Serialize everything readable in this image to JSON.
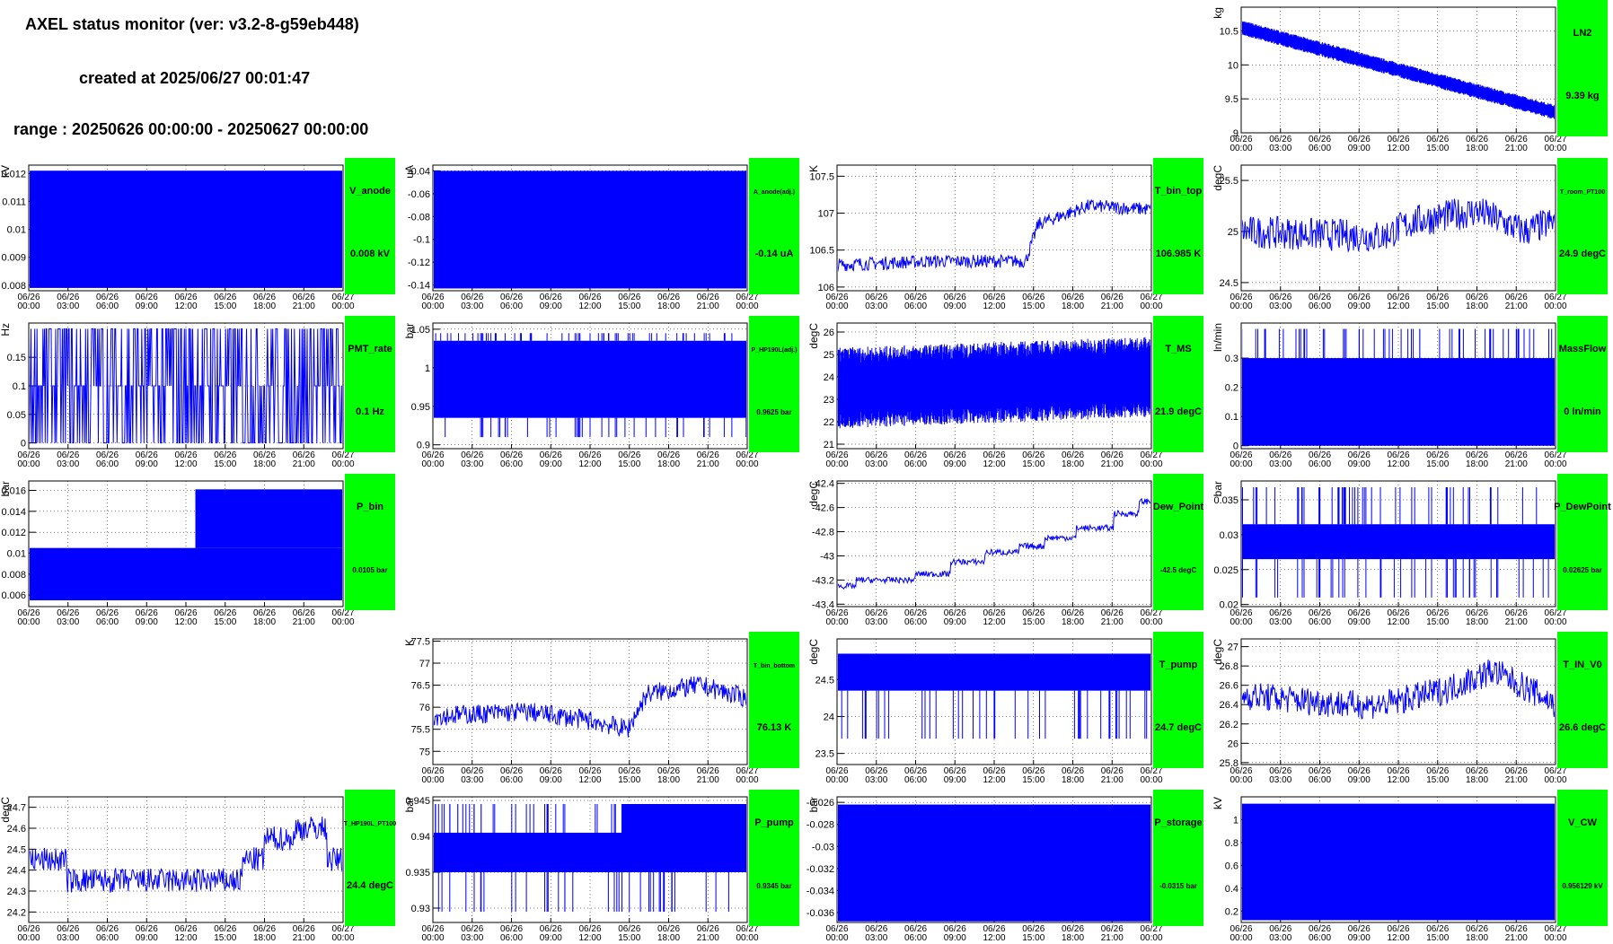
{
  "header": {
    "title": "AXEL status monitor (ver: v3.2-8-g59eb448)",
    "created": "created at 2025/06/27 00:01:47",
    "range": "range : 20250626 00:00:00 - 20250627 00:00:00"
  },
  "colors": {
    "trace": "#0000ff",
    "badge": "#00ff00",
    "axis": "#000000",
    "grid": "#000000",
    "background": "#ffffff"
  },
  "x_ticks": [
    [
      "06/26",
      "00:00"
    ],
    [
      "06/26",
      "03:00"
    ],
    [
      "06/26",
      "06:00"
    ],
    [
      "06/26",
      "09:00"
    ],
    [
      "06/26",
      "12:00"
    ],
    [
      "06/26",
      "15:00"
    ],
    [
      "06/26",
      "18:00"
    ],
    [
      "06/26",
      "21:00"
    ],
    [
      "06/27",
      "00:00"
    ]
  ],
  "chart_data": [
    {
      "id": "LN2",
      "type": "line",
      "grid_pos": "row0-col3",
      "series_name": "LN2",
      "current": "9.39 kg",
      "ylabel": "kg",
      "yticks": [
        "9",
        "9.5",
        "10",
        "10.5"
      ],
      "ylim": [
        9,
        10.85
      ],
      "trend": {
        "start": 10.55,
        "end": 9.3,
        "band": 0.22
      },
      "style": "band"
    },
    {
      "id": "V_anode",
      "type": "area",
      "grid_pos": "row1-col0",
      "series_name": "V_anode",
      "current": "0.008 kV",
      "ylabel": "kV",
      "yticks": [
        "0.008",
        "0.009",
        "0.01",
        "0.011",
        "0.012"
      ],
      "ylim": [
        0.0078,
        0.0123
      ],
      "fill": {
        "from": 0.0079,
        "to": 0.0121
      }
    },
    {
      "id": "A_anode",
      "type": "area",
      "grid_pos": "row1-col1",
      "series_name": "A_anode(adj.)",
      "current": "-0.14 uA",
      "ylabel": "uA",
      "yticks": [
        "-0.14",
        "-0.12",
        "-0.1",
        "-0.08",
        "-0.06",
        "-0.04"
      ],
      "ylim": [
        -0.145,
        -0.035
      ],
      "fill": {
        "from": -0.143,
        "to": -0.04
      }
    },
    {
      "id": "T_bin_top",
      "type": "line",
      "grid_pos": "row1-col2",
      "series_name": "T_bin_top",
      "current": "106.985 K",
      "ylabel": "K",
      "yticks": [
        "106",
        "106.5",
        "107",
        "107.5"
      ],
      "ylim": [
        105.95,
        107.65
      ],
      "knots": [
        [
          0,
          106.3
        ],
        [
          0.3,
          106.35
        ],
        [
          0.6,
          106.35
        ],
        [
          0.64,
          106.85
        ],
        [
          0.8,
          107.1
        ],
        [
          1,
          107.05
        ]
      ],
      "noise": 0.18
    },
    {
      "id": "T_room_PT100",
      "type": "line",
      "grid_pos": "row1-col3",
      "series_name": "T_room_PT100",
      "current": "24.9 degC",
      "ylabel": "degC",
      "yticks": [
        "24.5",
        "25",
        "25.5"
      ],
      "ylim": [
        24.42,
        25.65
      ],
      "knots": [
        [
          0,
          25.0
        ],
        [
          0.45,
          24.95
        ],
        [
          0.55,
          25.1
        ],
        [
          0.75,
          25.2
        ],
        [
          0.9,
          25.0
        ],
        [
          1,
          25.1
        ]
      ],
      "noise": 0.32
    },
    {
      "id": "PMT_rate",
      "type": "line",
      "grid_pos": "row2-col0",
      "series_name": "PMT_rate",
      "current": "0.1 Hz",
      "ylabel": "Hz",
      "yticks": [
        "0",
        "0.05",
        "0.1",
        "0.15"
      ],
      "ylim": [
        -0.01,
        0.21
      ],
      "levels": [
        0,
        0.1,
        0.2
      ],
      "style": "spikes"
    },
    {
      "id": "P_HP190L",
      "type": "area",
      "grid_pos": "row2-col1",
      "series_name": "P_HP190L(adj.)",
      "current": "0.9625 bar",
      "ylabel": "bar",
      "yticks": [
        "0.9",
        "0.95",
        "1",
        "1.05"
      ],
      "ylim": [
        0.895,
        1.058
      ],
      "fill": {
        "from": 0.935,
        "to": 1.035
      },
      "spikes_up": 1.045,
      "spikes_down": 0.91
    },
    {
      "id": "T_MS",
      "type": "line",
      "grid_pos": "row2-col2",
      "series_name": "T_MS",
      "current": "21.9 degC",
      "ylabel": "degC",
      "yticks": [
        "21",
        "22",
        "23",
        "24",
        "25",
        "26"
      ],
      "ylim": [
        20.8,
        26.4
      ],
      "trend": {
        "start": 23.5,
        "end": 24.0,
        "band": 3.6
      },
      "style": "band"
    },
    {
      "id": "MassFlow",
      "type": "line",
      "grid_pos": "row2-col3",
      "series_name": "MassFlow",
      "current": "0 ln/min",
      "ylabel": "ln/min",
      "yticks": [
        "0",
        "0.1",
        "0.2",
        "0.3"
      ],
      "ylim": [
        -0.01,
        0.42
      ],
      "fill": {
        "from": 0,
        "to": 0.3
      },
      "spikes_up": 0.4
    },
    {
      "id": "P_bin",
      "type": "line",
      "grid_pos": "row3-col0",
      "series_name": "P_bin",
      "current": "0.0105 bar",
      "ylabel": "bar",
      "yticks": [
        "0.006",
        "0.008",
        "0.01",
        "0.012",
        "0.014",
        "0.016"
      ],
      "ylim": [
        0.0049,
        0.0169
      ],
      "fill": {
        "from": 0.0055,
        "to": 0.0105
      },
      "fill2": {
        "from": 0.0105,
        "to": 0.0161,
        "x0": 0.53
      }
    },
    {
      "id": "Dew_Point",
      "type": "line",
      "grid_pos": "row3-col2",
      "series_name": "Dew_Point",
      "current": "-42.5 degC",
      "ylabel": "degC",
      "yticks": [
        "-43.4",
        "-43.2",
        "-43",
        "-42.8",
        "-42.6",
        "-42.4"
      ],
      "ylim": [
        -43.42,
        -42.38
      ],
      "steps": [
        [
          0,
          -43.25
        ],
        [
          0.06,
          -43.2
        ],
        [
          0.25,
          -43.15
        ],
        [
          0.36,
          -43.05
        ],
        [
          0.47,
          -42.97
        ],
        [
          0.58,
          -42.92
        ],
        [
          0.66,
          -42.85
        ],
        [
          0.76,
          -42.77
        ],
        [
          0.88,
          -42.65
        ],
        [
          0.96,
          -42.55
        ],
        [
          1,
          -42.5
        ]
      ],
      "noise": 0.05
    },
    {
      "id": "P_DewPoint",
      "type": "area",
      "grid_pos": "row3-col3",
      "series_name": "P_DewPoint",
      "current": "0.02625 bar",
      "ylabel": "bar",
      "yticks": [
        "0.02",
        "0.025",
        "0.03",
        "0.035"
      ],
      "ylim": [
        0.0197,
        0.0377
      ],
      "fill": {
        "from": 0.0265,
        "to": 0.0315
      },
      "spikes_up": 0.0368,
      "spikes_down": 0.021
    },
    {
      "id": "T_bin_bottom",
      "type": "line",
      "grid_pos": "row4-col1",
      "series_name": "T_bin_bottom",
      "current": "76.13 K",
      "ylabel": "K",
      "yticks": [
        "75",
        "75.5",
        "76",
        "76.5",
        "77",
        "77.5"
      ],
      "ylim": [
        74.7,
        77.55
      ],
      "knots": [
        [
          0,
          75.8
        ],
        [
          0.3,
          75.9
        ],
        [
          0.5,
          75.7
        ],
        [
          0.62,
          75.5
        ],
        [
          0.68,
          76.3
        ],
        [
          0.85,
          76.5
        ],
        [
          1,
          76.2
        ]
      ],
      "noise": 0.45
    },
    {
      "id": "T_pump",
      "type": "area",
      "grid_pos": "row4-col2",
      "series_name": "T_pump",
      "current": "24.7 degC",
      "ylabel": "degC",
      "yticks": [
        "23.5",
        "24",
        "24.5"
      ],
      "ylim": [
        23.35,
        25.05
      ],
      "fill": {
        "from": 24.35,
        "to": 24.85
      },
      "spikes_down": 23.7
    },
    {
      "id": "T_IN_V0",
      "type": "line",
      "grid_pos": "row4-col3",
      "series_name": "T_IN_V0",
      "current": "26.6 degC",
      "ylabel": "degC",
      "yticks": [
        "25.8",
        "26",
        "26.2",
        "26.4",
        "26.6",
        "26.8",
        "27"
      ],
      "ylim": [
        25.78,
        27.08
      ],
      "knots": [
        [
          0,
          26.5
        ],
        [
          0.35,
          26.4
        ],
        [
          0.45,
          26.4
        ],
        [
          0.65,
          26.55
        ],
        [
          0.8,
          26.75
        ],
        [
          0.95,
          26.5
        ],
        [
          1,
          26.4
        ]
      ],
      "noise": 0.3
    },
    {
      "id": "T_HP190L_PT100",
      "type": "line",
      "grid_pos": "row5-col0",
      "series_name": "T_HP190L_PT100",
      "current": "24.4 degC",
      "ylabel": "degC",
      "yticks": [
        "24.2",
        "24.3",
        "24.4",
        "24.5",
        "24.6",
        "24.7"
      ],
      "ylim": [
        24.15,
        24.75
      ],
      "steps": [
        [
          0,
          24.45
        ],
        [
          0.12,
          24.35
        ],
        [
          0.68,
          24.45
        ],
        [
          0.75,
          24.55
        ],
        [
          0.85,
          24.6
        ],
        [
          0.95,
          24.45
        ],
        [
          1,
          24.4
        ]
      ],
      "noise": 0.12
    },
    {
      "id": "P_pump",
      "type": "area",
      "grid_pos": "row5-col1",
      "series_name": "P_pump",
      "current": "0.9345 bar",
      "ylabel": "bar",
      "yticks": [
        "0.93",
        "0.935",
        "0.94",
        "0.945"
      ],
      "ylim": [
        0.928,
        0.9455
      ],
      "fill": {
        "from": 0.935,
        "to": 0.9405
      },
      "fill2": {
        "from": 0.9405,
        "to": 0.9445,
        "x0": 0.6
      },
      "spikes_up": 0.9445,
      "spikes_down": 0.9295
    },
    {
      "id": "P_storage",
      "type": "area",
      "grid_pos": "row5-col2",
      "series_name": "P_storage",
      "current": "-0.0315 bar",
      "ylabel": "bar",
      "yticks": [
        "-0.036",
        "-0.034",
        "-0.032",
        "-0.03",
        "-0.028",
        "-0.026"
      ],
      "ylim": [
        -0.0369,
        -0.0255
      ],
      "fill": {
        "from": -0.0368,
        "to": -0.0262
      }
    },
    {
      "id": "V_CW",
      "type": "area",
      "grid_pos": "row5-col3",
      "series_name": "V_CW",
      "current": "0.956129 kV",
      "ylabel": "kV",
      "yticks": [
        "0.2",
        "0.4",
        "0.6",
        "0.8",
        "1"
      ],
      "ylim": [
        0.1,
        1.2
      ],
      "fill": {
        "from": 0.12,
        "to": 1.14
      }
    }
  ]
}
